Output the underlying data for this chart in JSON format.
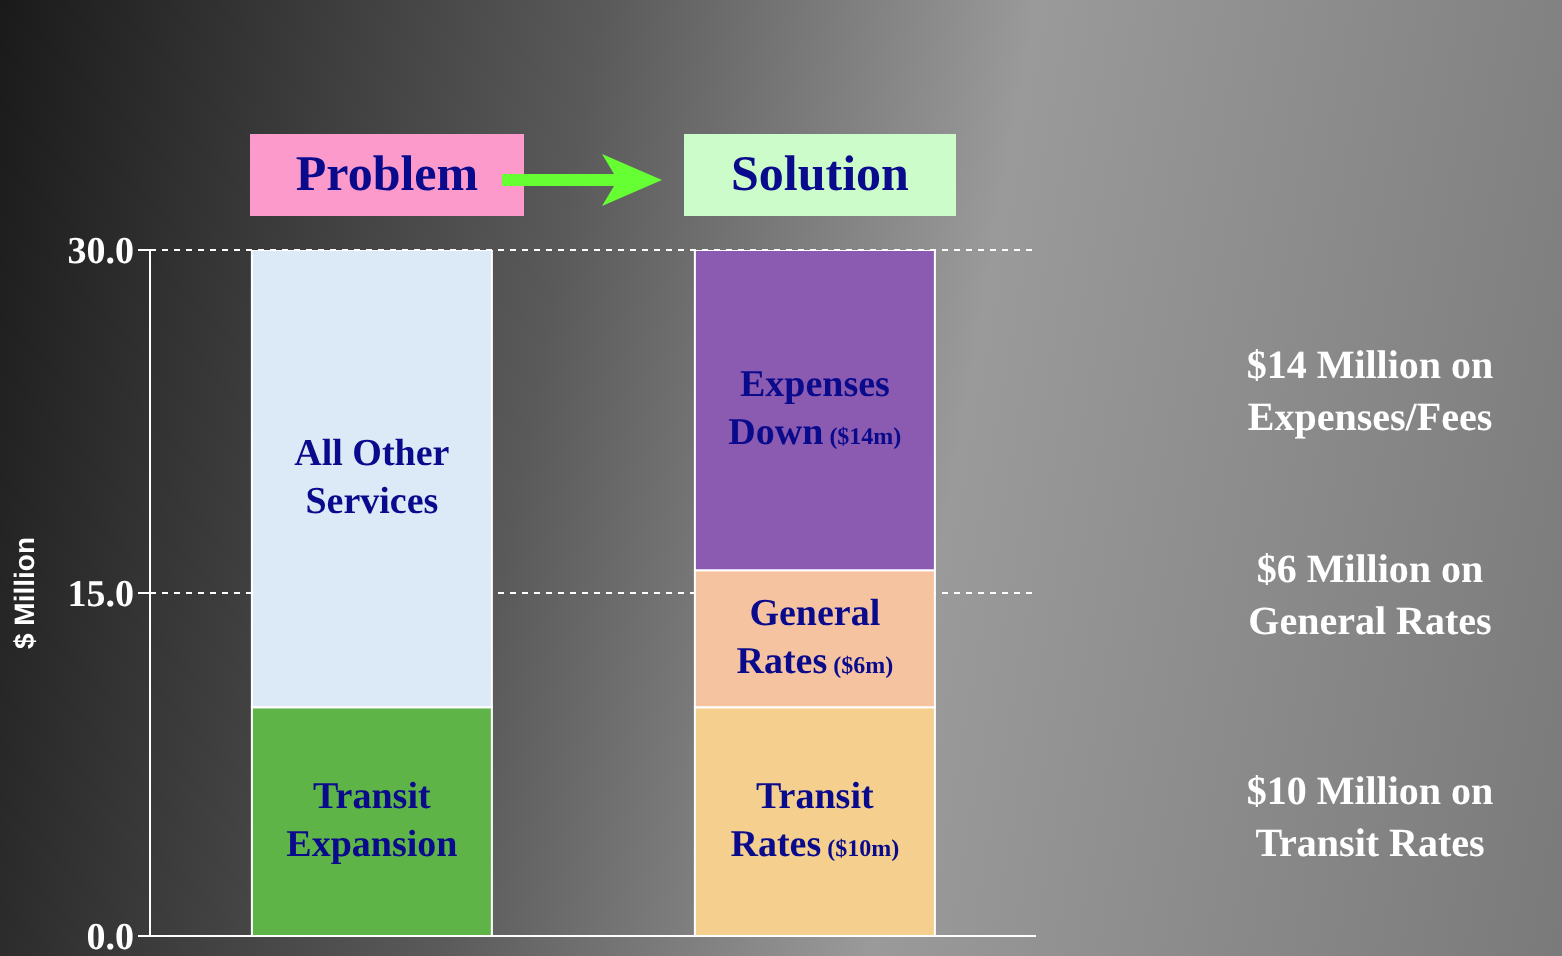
{
  "chart_data": {
    "type": "bar",
    "stacked": true,
    "ylabel": "$ Million",
    "categories": [
      null,
      null
    ],
    "series": [
      {
        "name": "Transit Expansion",
        "color": "#5fb447",
        "values": [
          10,
          null
        ]
      },
      {
        "name": "All Other Services",
        "color": "#dce9f7",
        "values": [
          20,
          null
        ]
      },
      {
        "name": "Transit Rates",
        "color": "#f4cf8e",
        "values": [
          null,
          10
        ],
        "value_labels": [
          null,
          "($10m)"
        ]
      },
      {
        "name": "General Rates",
        "color": "#f6c3a0",
        "values": [
          null,
          6
        ],
        "value_labels": [
          null,
          "($6m)"
        ]
      },
      {
        "name": "Expenses Down",
        "color": "#8a5bb0",
        "values": [
          null,
          14
        ],
        "value_labels": [
          null,
          "($14m)"
        ]
      }
    ],
    "ylim": [
      0,
      30
    ],
    "yticks": [
      {
        "value": 0,
        "label": "0.0"
      },
      {
        "value": 15,
        "label": "15.0"
      },
      {
        "value": 30,
        "label": "30.0"
      }
    ],
    "grid": "y",
    "annotations": [
      "Problem",
      "Solution",
      "$14 Million on Expenses/Fees",
      "$6 Million on General Rates",
      "$10 Million on Transit Rates"
    ]
  }
}
